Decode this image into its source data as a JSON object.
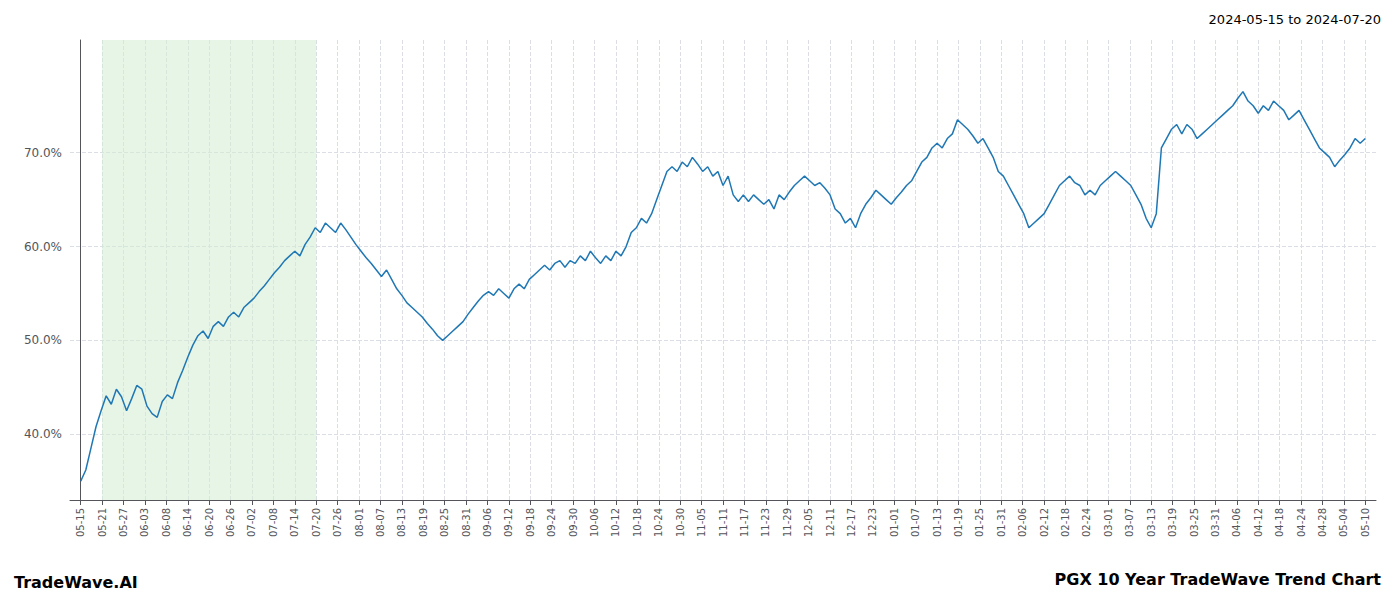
{
  "chart_data": {
    "type": "line",
    "title": "PGX 10 Year TradeWave Trend Chart",
    "subtitle": "2024-05-15 to 2024-07-20",
    "annotations": [
      "TradeWave.AI"
    ],
    "color": "#1f77b4",
    "grid": true,
    "xlim": [
      -0.5,
      60.5
    ],
    "xticks": [
      {
        "value": 0,
        "label": "05-15"
      },
      {
        "value": 1,
        "label": "05-21"
      },
      {
        "value": 2,
        "label": "05-27"
      },
      {
        "value": 3,
        "label": "06-03"
      },
      {
        "value": 4,
        "label": "06-08"
      },
      {
        "value": 5,
        "label": "06-14"
      },
      {
        "value": 6,
        "label": "06-20"
      },
      {
        "value": 7,
        "label": "06-26"
      },
      {
        "value": 8,
        "label": "07-02"
      },
      {
        "value": 9,
        "label": "07-08"
      },
      {
        "value": 10,
        "label": "07-14"
      },
      {
        "value": 11,
        "label": "07-20"
      },
      {
        "value": 12,
        "label": "07-26"
      },
      {
        "value": 13,
        "label": "08-01"
      },
      {
        "value": 14,
        "label": "08-07"
      },
      {
        "value": 15,
        "label": "08-13"
      },
      {
        "value": 16,
        "label": "08-19"
      },
      {
        "value": 17,
        "label": "08-25"
      },
      {
        "value": 18,
        "label": "08-31"
      },
      {
        "value": 19,
        "label": "09-06"
      },
      {
        "value": 20,
        "label": "09-12"
      },
      {
        "value": 21,
        "label": "09-18"
      },
      {
        "value": 22,
        "label": "09-24"
      },
      {
        "value": 23,
        "label": "09-30"
      },
      {
        "value": 24,
        "label": "10-06"
      },
      {
        "value": 25,
        "label": "10-12"
      },
      {
        "value": 26,
        "label": "10-18"
      },
      {
        "value": 27,
        "label": "10-24"
      },
      {
        "value": 28,
        "label": "10-30"
      },
      {
        "value": 29,
        "label": "11-05"
      },
      {
        "value": 30,
        "label": "11-11"
      },
      {
        "value": 31,
        "label": "11-17"
      },
      {
        "value": 32,
        "label": "11-23"
      },
      {
        "value": 33,
        "label": "11-29"
      },
      {
        "value": 34,
        "label": "12-05"
      },
      {
        "value": 35,
        "label": "12-11"
      },
      {
        "value": 36,
        "label": "12-17"
      },
      {
        "value": 37,
        "label": "12-23"
      },
      {
        "value": 38,
        "label": "01-01"
      },
      {
        "value": 39,
        "label": "01-07"
      },
      {
        "value": 40,
        "label": "01-13"
      },
      {
        "value": 41,
        "label": "01-19"
      },
      {
        "value": 42,
        "label": "01-25"
      },
      {
        "value": 43,
        "label": "01-31"
      },
      {
        "value": 44,
        "label": "02-06"
      },
      {
        "value": 45,
        "label": "02-12"
      },
      {
        "value": 46,
        "label": "02-18"
      },
      {
        "value": 47,
        "label": "02-24"
      },
      {
        "value": 48,
        "label": "03-01"
      },
      {
        "value": 49,
        "label": "03-07"
      },
      {
        "value": 50,
        "label": "03-13"
      },
      {
        "value": 51,
        "label": "03-19"
      },
      {
        "value": 52,
        "label": "03-25"
      },
      {
        "value": 53,
        "label": "03-31"
      },
      {
        "value": 54,
        "label": "04-06"
      },
      {
        "value": 55,
        "label": "04-12"
      },
      {
        "value": 56,
        "label": "04-18"
      },
      {
        "value": 57,
        "label": "04-24"
      },
      {
        "value": 58,
        "label": "04-28"
      },
      {
        "value": 59,
        "label": "05-04"
      },
      {
        "value": 60,
        "label": "05-10"
      }
    ],
    "ylim": [
      33,
      82
    ],
    "yticks": [
      {
        "value": 40,
        "label": "40.0%"
      },
      {
        "value": 50,
        "label": "50.0%"
      },
      {
        "value": 60,
        "label": "60.0%"
      },
      {
        "value": 70,
        "label": "70.0%"
      }
    ],
    "shaded_span": {
      "from": 1,
      "to": 11,
      "color": "#d4ecd4"
    },
    "x": [
      0,
      0.238095,
      0.47619,
      0.714286,
      0.952381,
      1.190476,
      1.428571,
      1.666667,
      1.904762,
      2.142857,
      2.380952,
      2.619048,
      2.857143,
      3.095238,
      3.333333,
      3.571429,
      3.809524,
      4.047619,
      4.285714,
      4.52381,
      4.761905,
      5,
      5.238095,
      5.47619,
      5.714286,
      5.952381,
      6.190476,
      6.428571,
      6.666667,
      6.904762,
      7.142857,
      7.380952,
      7.619048,
      7.857143,
      8.095238,
      8.333333,
      8.571429,
      8.809524,
      9.047619,
      9.285714,
      9.52381,
      9.761905,
      10,
      10.238095,
      10.47619,
      10.714286,
      10.952381,
      11.190476,
      11.428571,
      11.666667,
      11.904762,
      12.142857,
      12.380952,
      12.619048,
      12.857143,
      13.095238,
      13.333333,
      13.571429,
      13.809524,
      14.047619,
      14.285714,
      14.52381,
      14.761905,
      15,
      15.238095,
      15.47619,
      15.714286,
      15.952381,
      16.190476,
      16.428571,
      16.666667,
      16.904762,
      17.142857,
      17.380952,
      17.619048,
      17.857143,
      18.095238,
      18.333333,
      18.571429,
      18.809524,
      19.047619,
      19.285714,
      19.52381,
      19.761905,
      20,
      20.238095,
      20.47619,
      20.714286,
      20.952381,
      21.190476,
      21.428571,
      21.666667,
      21.904762,
      22.142857,
      22.380952,
      22.619048,
      22.857143,
      23.095238,
      23.333333,
      23.571429,
      23.809524,
      24.047619,
      24.285714,
      24.52381,
      24.761905,
      25,
      25.238095,
      25.47619,
      25.714286,
      25.952381,
      26.190476,
      26.428571,
      26.666667,
      26.904762,
      27.142857,
      27.380952,
      27.619048,
      27.857143,
      28.095238,
      28.333333,
      28.571429,
      28.809524,
      29.047619,
      29.285714,
      29.52381,
      29.761905,
      30,
      30.238095,
      30.47619,
      30.714286,
      30.952381,
      31.190476,
      31.428571,
      31.666667,
      31.904762,
      32.142857,
      32.380952,
      32.619048,
      32.857143,
      33.095238,
      33.333333,
      33.571429,
      33.809524,
      34.047619,
      34.285714,
      34.52381,
      34.761905,
      35,
      35.238095,
      35.47619,
      35.714286,
      35.952381,
      36.190476,
      36.428571,
      36.666667,
      36.904762,
      37.142857,
      37.380952,
      37.619048,
      37.857143,
      38.095238,
      38.333333,
      38.571429,
      38.809524,
      39.047619,
      39.285714,
      39.52381,
      39.761905,
      40,
      40.238095,
      40.47619,
      40.714286,
      40.952381,
      41.190476,
      41.428571,
      41.666667,
      41.904762,
      42.142857,
      42.380952,
      42.619048,
      42.857143,
      43.095238,
      43.333333,
      43.571429,
      43.809524,
      44.047619,
      44.285714,
      44.52381,
      44.761905,
      45,
      45.238095,
      45.47619,
      45.714286,
      45.952381,
      46.190476,
      46.428571,
      46.666667,
      46.904762,
      47.142857,
      47.380952,
      47.619048,
      47.857143,
      48.095238,
      48.333333,
      48.571429,
      48.809524,
      49.047619,
      49.285714,
      49.52381,
      49.761905,
      50,
      50.238095,
      50.47619,
      50.714286,
      50.952381,
      51.190476,
      51.428571,
      51.666667,
      51.904762,
      52.142857,
      52.380952,
      52.619048,
      52.857143,
      53.095238,
      53.333333,
      53.571429,
      53.809524,
      54.047619,
      54.285714,
      54.52381,
      54.761905,
      55,
      55.238095,
      55.47619,
      55.714286,
      55.952381,
      56.190476,
      56.428571,
      56.666667,
      56.904762,
      57.142857,
      57.380952,
      57.619048,
      57.857143,
      58.095238,
      58.333333,
      58.571429,
      58.809524,
      59.047619,
      59.285714,
      59.52381,
      59.761905,
      60
    ],
    "values": [
      35.0,
      36.2,
      38.5,
      40.8,
      42.5,
      44.1,
      43.2,
      44.8,
      44.0,
      42.5,
      43.8,
      45.2,
      44.8,
      43.0,
      42.2,
      41.8,
      43.5,
      44.2,
      43.8,
      45.5,
      46.8,
      48.2,
      49.5,
      50.5,
      51.0,
      50.2,
      51.5,
      52.0,
      51.5,
      52.5,
      53.0,
      52.5,
      53.5,
      54.0,
      54.5,
      55.2,
      55.8,
      56.5,
      57.2,
      57.8,
      58.5,
      59.0,
      59.5,
      59.0,
      60.2,
      61.0,
      62.0,
      61.5,
      62.5,
      62.0,
      61.5,
      62.5,
      61.8,
      61.0,
      60.2,
      59.5,
      58.8,
      58.2,
      57.5,
      56.8,
      57.5,
      56.5,
      55.5,
      54.8,
      54.0,
      53.5,
      53.0,
      52.5,
      51.8,
      51.2,
      50.5,
      50.0,
      50.5,
      51.0,
      51.5,
      52.0,
      52.8,
      53.5,
      54.2,
      54.8,
      55.2,
      54.8,
      55.5,
      55.0,
      54.5,
      55.5,
      56.0,
      55.5,
      56.5,
      57.0,
      57.5,
      58.0,
      57.5,
      58.2,
      58.5,
      57.8,
      58.5,
      58.2,
      59.0,
      58.5,
      59.5,
      58.8,
      58.2,
      59.0,
      58.5,
      59.5,
      59.0,
      60.0,
      61.5,
      62.0,
      63.0,
      62.5,
      63.5,
      65.0,
      66.5,
      68.0,
      68.5,
      68.0,
      69.0,
      68.5,
      69.5,
      68.8,
      68.0,
      68.5,
      67.5,
      68.0,
      66.5,
      67.5,
      65.5,
      64.8,
      65.5,
      64.8,
      65.5,
      65.0,
      64.5,
      65.0,
      64.0,
      65.5,
      65.0,
      65.8,
      66.5,
      67.0,
      67.5,
      67.0,
      66.5,
      66.8,
      66.2,
      65.5,
      64.0,
      63.5,
      62.5,
      63.0,
      62.0,
      63.5,
      64.5,
      65.2,
      66.0,
      65.5,
      65.0,
      64.5,
      65.2,
      65.8,
      66.5,
      67.0,
      68.0,
      69.0,
      69.5,
      70.5,
      71.0,
      70.5,
      71.5,
      72.0,
      73.5,
      73.0,
      72.5,
      71.8,
      71.0,
      71.5,
      70.5,
      69.5,
      68.0,
      67.5,
      66.5,
      65.5,
      64.5,
      63.5,
      62.0,
      62.5,
      63.0,
      63.5,
      64.5,
      65.5,
      66.5,
      67.0,
      67.5,
      66.8,
      66.5,
      65.5,
      66.0,
      65.5,
      66.5,
      67.0,
      67.5,
      68.0,
      67.5,
      67.0,
      66.5,
      65.5,
      64.5,
      63.0,
      62.0,
      63.5,
      70.5,
      71.5,
      72.5,
      73.0,
      72.0,
      73.0,
      72.5,
      71.5,
      72.0,
      72.5,
      73.0,
      73.5,
      74.0,
      74.5,
      75.0,
      75.8,
      76.5,
      75.5,
      75.0,
      74.2,
      75.0,
      74.5,
      75.5,
      75.0,
      74.5,
      73.5,
      74.0,
      74.5,
      73.5,
      72.5,
      71.5,
      70.5,
      70.0,
      69.5,
      68.5,
      69.2,
      69.8,
      70.5,
      71.5,
      71.0,
      71.5
    ]
  }
}
